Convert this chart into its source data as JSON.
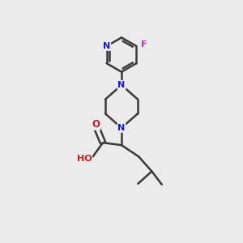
{
  "background_color": "#ebebeb",
  "bond_color": "#3a3a3a",
  "bond_width": 1.8,
  "atom_colors": {
    "N": "#1a1acc",
    "O": "#cc1a1a",
    "F": "#cc22cc",
    "C": "#3a3a3a"
  },
  "figsize": [
    3.0,
    3.0
  ],
  "dpi": 100,
  "xlim": [
    0,
    10
  ],
  "ylim": [
    0,
    10
  ]
}
